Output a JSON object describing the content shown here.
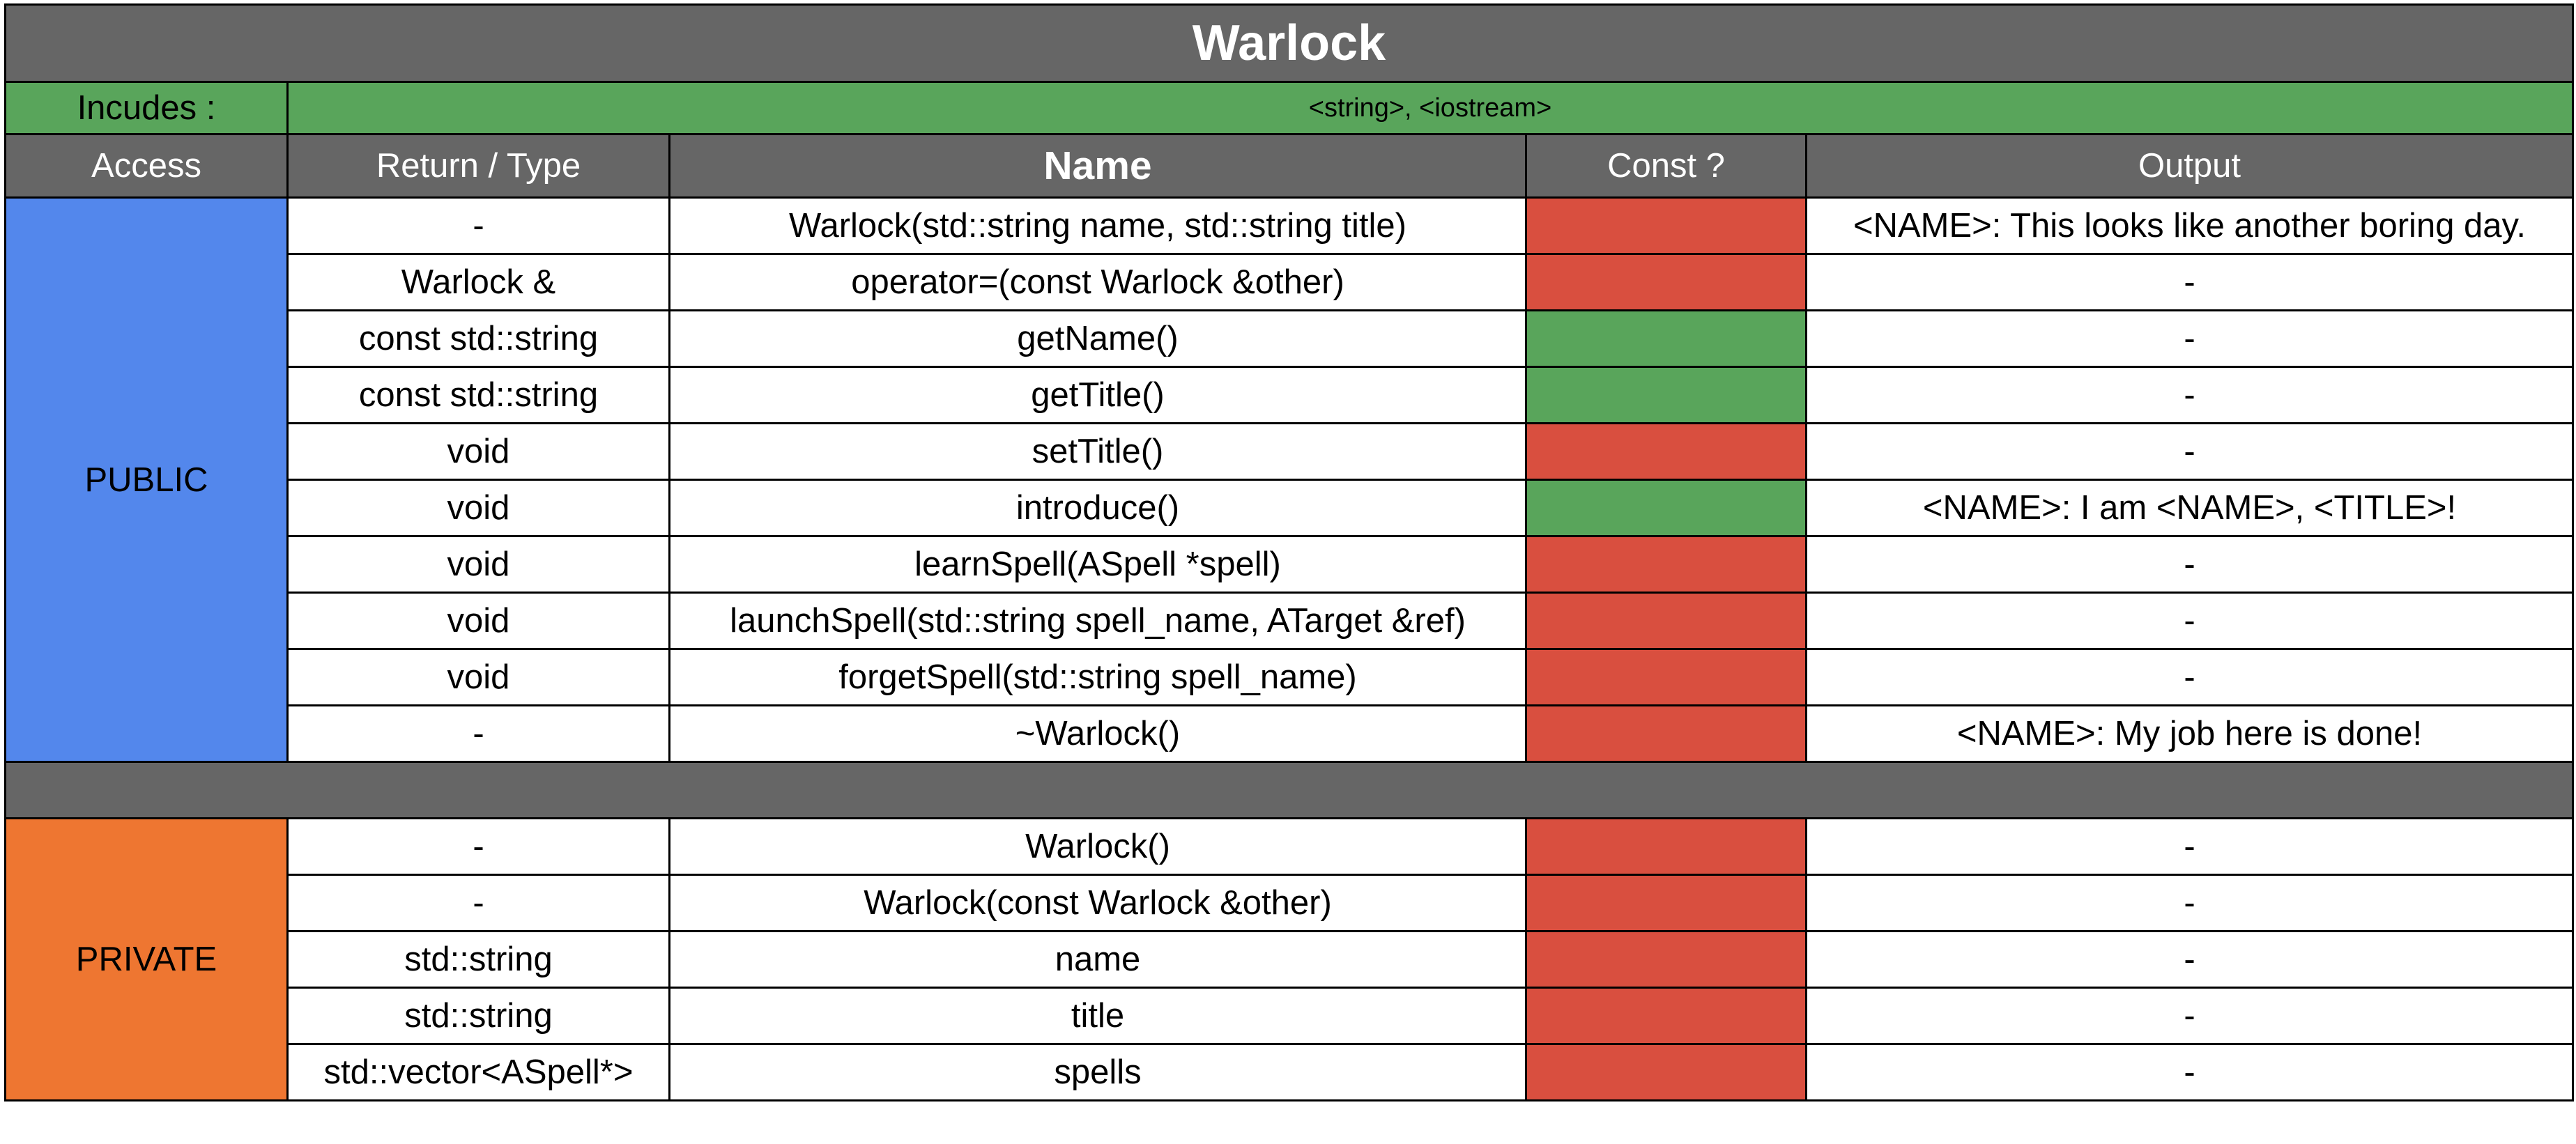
{
  "title": "Warlock",
  "includes": {
    "label": "Incudes :",
    "value": "<string>, <iostream>"
  },
  "columns": {
    "access": "Access",
    "return_type": "Return / Type",
    "name": "Name",
    "const": "Const ?",
    "output": "Output"
  },
  "colors": {
    "header_gray": "#666666",
    "include_green": "#59a55b",
    "const_true": "#59a55b",
    "const_false": "#d94f3f",
    "public_blue": "#5387ec",
    "private_orange": "#ee7631"
  },
  "sections": [
    {
      "access": "PUBLIC",
      "rows": [
        {
          "type": "-",
          "name": "Warlock(std::string name, std::string title)",
          "const": false,
          "output": "<NAME>: This looks like another boring day."
        },
        {
          "type": "Warlock &",
          "name": "operator=(const Warlock &other)",
          "const": false,
          "output": "-"
        },
        {
          "type": "const std::string",
          "name": "getName()",
          "const": true,
          "output": "-"
        },
        {
          "type": "const std::string",
          "name": "getTitle()",
          "const": true,
          "output": "-"
        },
        {
          "type": "void",
          "name": "setTitle()",
          "const": false,
          "output": "-"
        },
        {
          "type": "void",
          "name": "introduce()",
          "const": true,
          "output": "<NAME>: I am <NAME>, <TITLE>!"
        },
        {
          "type": "void",
          "name": "learnSpell(ASpell *spell)",
          "const": false,
          "output": "-"
        },
        {
          "type": "void",
          "name": "launchSpell(std::string spell_name, ATarget &ref)",
          "const": false,
          "output": "-"
        },
        {
          "type": "void",
          "name": "forgetSpell(std::string spell_name)",
          "const": false,
          "output": "-"
        },
        {
          "type": "-",
          "name": "~Warlock()",
          "const": false,
          "output": "<NAME>: My job here is done!"
        }
      ]
    },
    {
      "access": "PRIVATE",
      "rows": [
        {
          "type": "-",
          "name": "Warlock()",
          "const": false,
          "output": "-"
        },
        {
          "type": "-",
          "name": "Warlock(const Warlock &other)",
          "const": false,
          "output": "-"
        },
        {
          "type": "std::string",
          "name": "name",
          "const": false,
          "output": "-"
        },
        {
          "type": "std::string",
          "name": "title",
          "const": false,
          "output": "-"
        },
        {
          "type": "std::vector<ASpell*>",
          "name": "spells",
          "const": false,
          "output": "-"
        }
      ]
    }
  ]
}
